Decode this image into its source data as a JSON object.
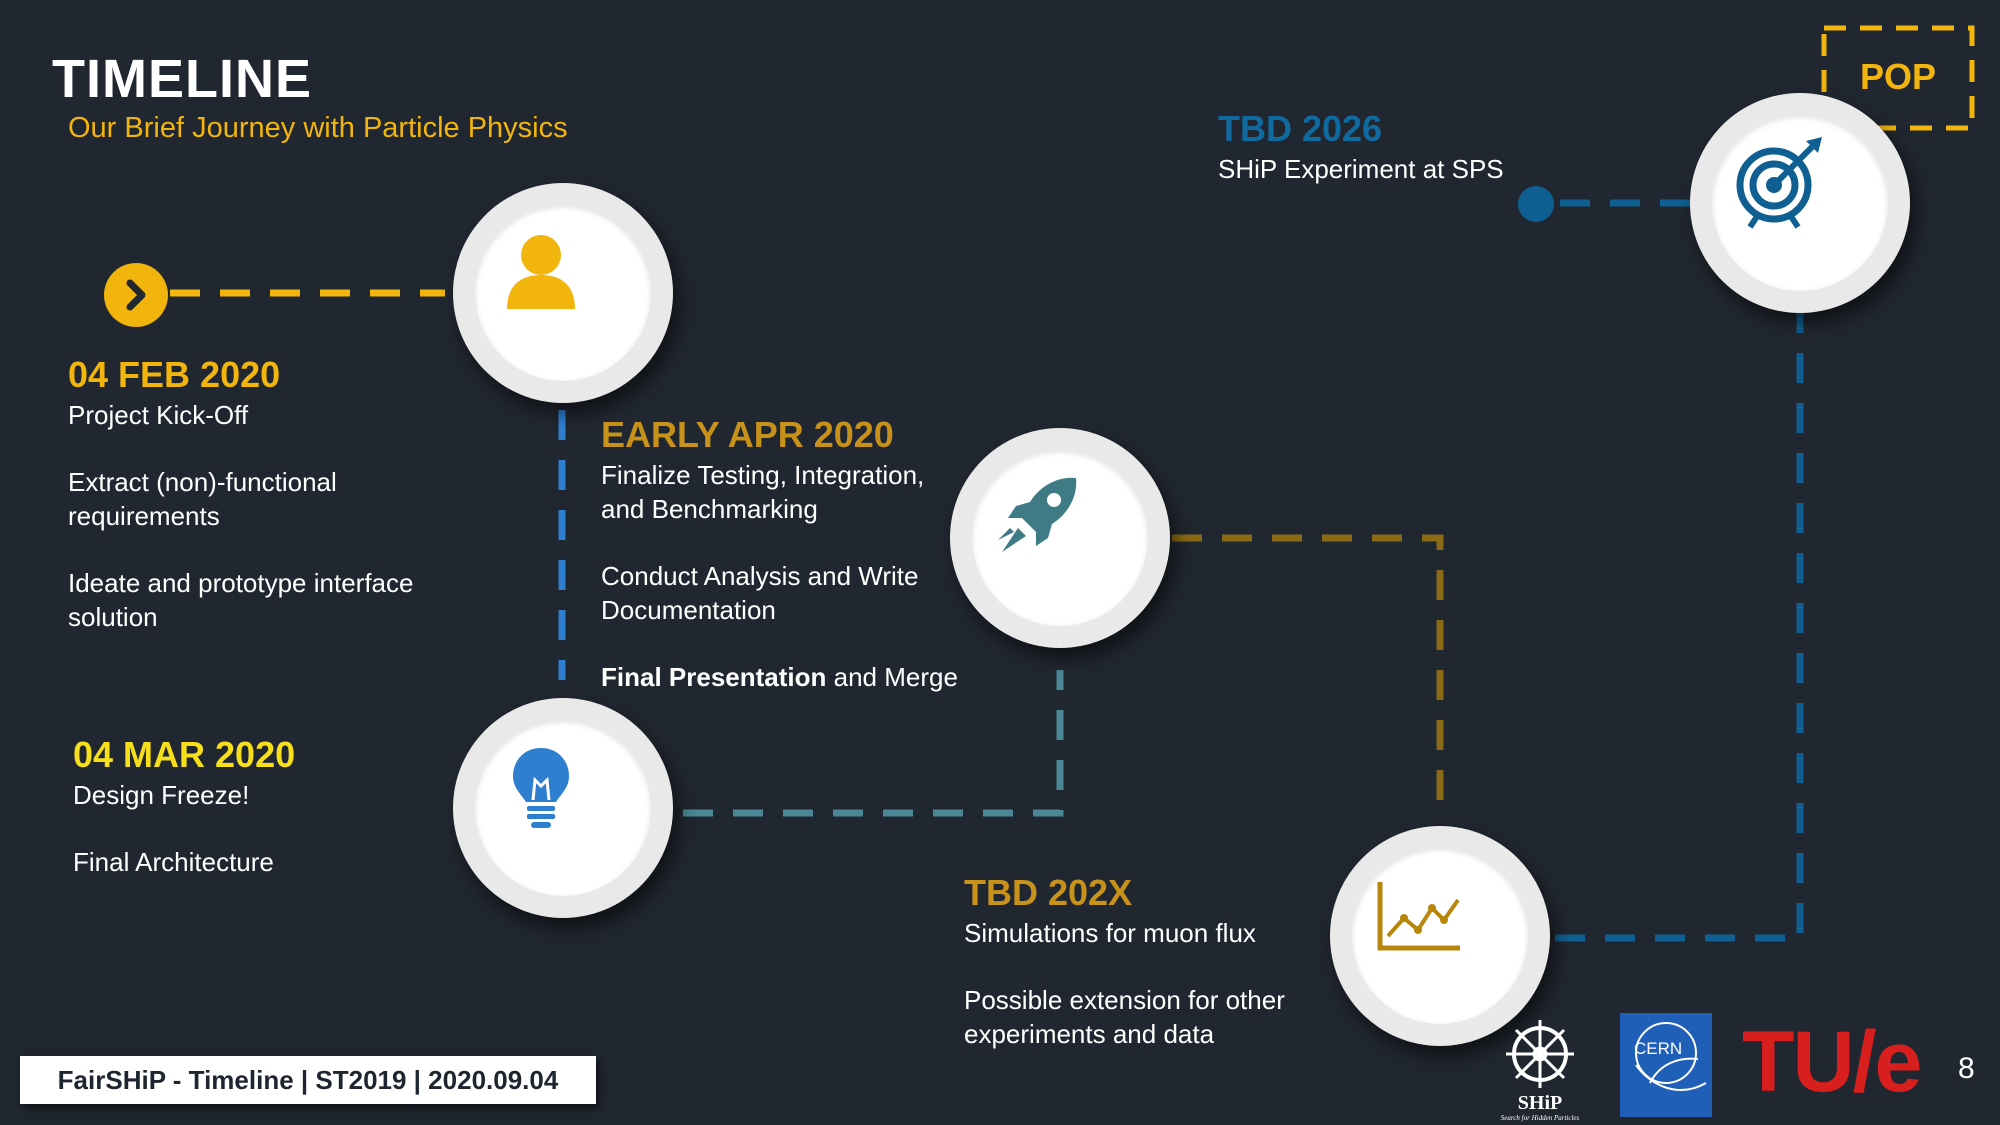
{
  "header": {
    "title": "TIMELINE",
    "subtitle": "Our Brief Journey with Particle Physics"
  },
  "milestones": {
    "kickoff": {
      "date": "04 FEB 2020",
      "lines": [
        "Project Kick-Off",
        "Extract (non)-functional requirements",
        "Ideate and prototype interface solution"
      ],
      "color": "#f2b50d"
    },
    "freeze": {
      "date": "04 MAR 2020",
      "lines": [
        "Design Freeze!",
        "Final Architecture"
      ],
      "color": "#f7e01b"
    },
    "april": {
      "date": "EARLY APR 2020",
      "lines": [
        "Finalize Testing, Integration, and Benchmarking",
        "Conduct Analysis and Write Documentation"
      ],
      "final_bold": "Final Presentation",
      "final_rest": " and Merge",
      "color": "#c8921a"
    },
    "tbd_x": {
      "date": "TBD 202X",
      "lines": [
        "Simulations for muon flux",
        "Possible extension for other experiments and data"
      ],
      "color": "#c8921a"
    },
    "tbd_2026": {
      "date": "TBD 2026",
      "lines": [
        "SHiP Experiment at SPS"
      ],
      "color": "#0f6aa0"
    }
  },
  "pop_label": "POP",
  "icons": {
    "start": "chevron-right-icon",
    "kickoff": "person-icon",
    "freeze": "lightbulb-icon",
    "april": "rocket-icon",
    "tbd_x": "line-chart-icon",
    "tbd_2026": "target-icon"
  },
  "colors": {
    "background": "#212730",
    "yellow": "#f2b50d",
    "blue": "#2f7fd1",
    "teal": "#4b8896",
    "gold": "#8a6a14",
    "navy": "#0f5f92",
    "tue_red": "#d91e1e",
    "cern_blue": "#1f5fb8"
  },
  "footer": {
    "text": "FairSHiP - Timeline | ST2019 | 2020.09.04"
  },
  "logos": {
    "ship_name": "SHiP",
    "ship_tagline": "Search for Hidden Particles",
    "cern": "CERN",
    "tue": "TU/e"
  },
  "page_number": "8"
}
